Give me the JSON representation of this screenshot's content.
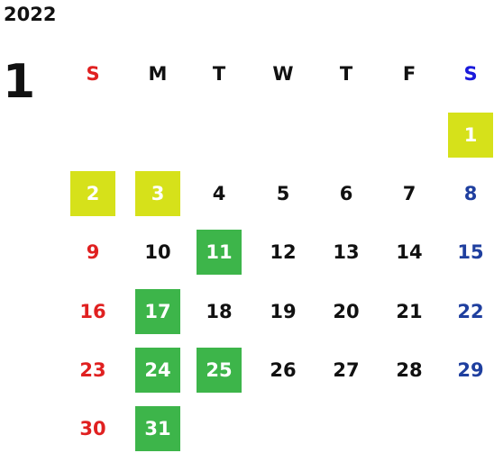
{
  "calendar": {
    "year": "2022",
    "month": "1",
    "weekdays": [
      "S",
      "M",
      "T",
      "W",
      "T",
      "F",
      "S"
    ],
    "first_weekday_index": 6,
    "days_in_month": 31,
    "highlights": {
      "lime": [
        1,
        2,
        3
      ],
      "green": [
        11,
        17,
        24,
        25,
        31
      ]
    }
  },
  "colors": {
    "sunday": "#e02020",
    "saturday_header": "#1a1adb",
    "saturday_day": "#1f3f9f",
    "weekday": "#111111",
    "lime_bg": "#d6e11a",
    "green_bg": "#3db54a",
    "highlight_text": "#ffffff"
  }
}
